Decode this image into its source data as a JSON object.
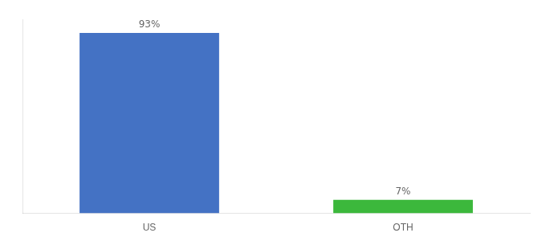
{
  "chart_data": {
    "type": "bar",
    "categories": [
      "US",
      "OTH"
    ],
    "values": [
      93,
      7
    ],
    "value_labels": [
      "93%",
      "7%"
    ],
    "data_labels": true,
    "colors": [
      "#4472c4",
      "#3cb83c"
    ],
    "ylim": [
      0,
      100
    ],
    "tick_labels": "x",
    "grid": false
  }
}
